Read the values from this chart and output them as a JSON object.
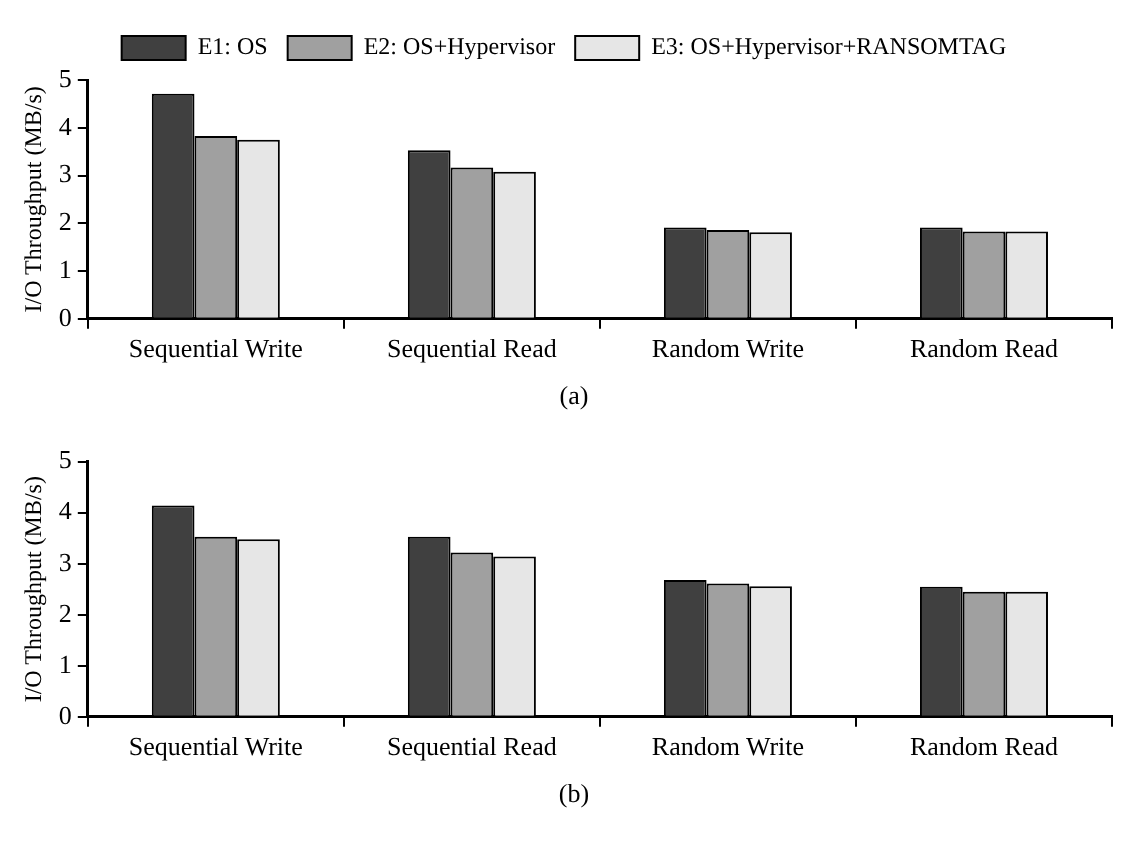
{
  "chart_data": [
    {
      "type": "bar",
      "title": "(a)",
      "ylabel": "I/O Throughput (MB/s)",
      "categories": [
        "Sequential Write",
        "Sequential Read",
        "Random Write",
        "Random Read"
      ],
      "series": [
        {
          "name": "E1: OS",
          "color": "#404040",
          "values": [
            4.71,
            3.53,
            1.91,
            1.91
          ]
        },
        {
          "name": "E2: OS+Hypervisor",
          "color": "#a0a0a0",
          "values": [
            3.83,
            3.17,
            1.86,
            1.83
          ]
        },
        {
          "name": "E3: OS+Hypervisor+RANSOMTAG",
          "color": "#e6e6e6",
          "values": [
            3.75,
            3.08,
            1.81,
            1.83
          ]
        }
      ],
      "ylim": [
        0,
        5
      ],
      "yticks": [
        0,
        1,
        2,
        3,
        4,
        5
      ],
      "grid": false,
      "legend": "top"
    },
    {
      "type": "bar",
      "title": "(b)",
      "ylabel": "I/O Throughput (MB/s)",
      "categories": [
        "Sequential Write",
        "Sequential Read",
        "Random Write",
        "Random Read"
      ],
      "series": [
        {
          "color": "#404040",
          "values": [
            4.14,
            3.53,
            2.68,
            2.55
          ]
        },
        {
          "color": "#a0a0a0",
          "values": [
            3.53,
            3.22,
            2.61,
            2.45
          ]
        },
        {
          "color": "#e6e6e6",
          "values": [
            3.48,
            3.14,
            2.56,
            2.45
          ]
        }
      ],
      "ylim": [
        0,
        5
      ],
      "yticks": [
        0,
        1,
        2,
        3,
        4,
        5
      ],
      "grid": false
    }
  ]
}
